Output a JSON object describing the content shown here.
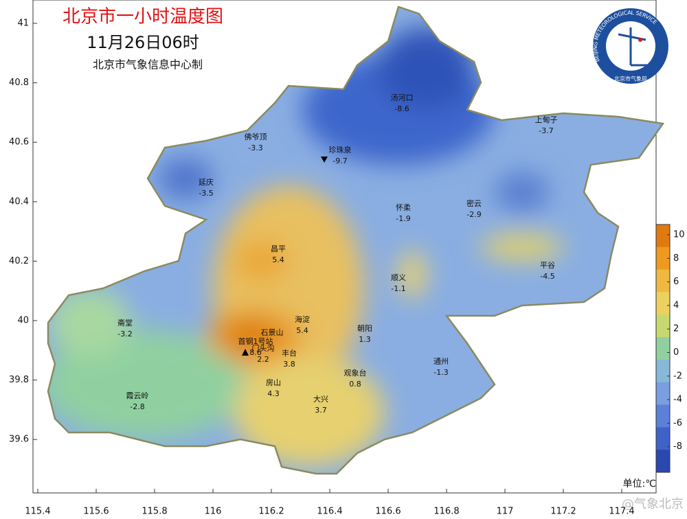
{
  "header": {
    "title": "北京市一小时温度图",
    "time": "11月26日06时",
    "producer": "北京市气象信息中心制"
  },
  "axes": {
    "lat_ticks": [
      41,
      40.8,
      40.6,
      40.4,
      40.2,
      40,
      39.8,
      39.6
    ],
    "lon_ticks": [
      115.4,
      115.6,
      115.8,
      116,
      116.2,
      116.4,
      116.6,
      116.8,
      117,
      117.2,
      117.4
    ]
  },
  "stations": [
    {
      "name": "汤河口",
      "value": -8.6
    },
    {
      "name": "上甸子",
      "value": -3.7
    },
    {
      "name": "佛爷顶",
      "value": -3.3
    },
    {
      "name": "珍珠泉",
      "value": -9.7
    },
    {
      "name": "延庆",
      "value": -3.5
    },
    {
      "name": "怀柔",
      "value": -1.9
    },
    {
      "name": "密云",
      "value": -2.9
    },
    {
      "name": "昌平",
      "value": 5.4
    },
    {
      "name": "平谷",
      "value": -4.5
    },
    {
      "name": "顺义",
      "value": -1.1
    },
    {
      "name": "海淀",
      "value": 5.4
    },
    {
      "name": "朝阳",
      "value": 1.3
    },
    {
      "name": "石景山"
    },
    {
      "name": "首钢1号站",
      "value": 8.6
    },
    {
      "name": "门头沟",
      "value": 2.2
    },
    {
      "name": "丰台",
      "value": 3.8
    },
    {
      "name": "斋堂",
      "value": -3.2
    },
    {
      "name": "通州",
      "value": -1.3
    },
    {
      "name": "观象台",
      "value": 0.8
    },
    {
      "name": "房山",
      "value": 4.3
    },
    {
      "name": "霞云岭",
      "value": -2.8
    },
    {
      "name": "大兴",
      "value": 3.7
    }
  ],
  "colorbar": {
    "ticks": [
      10,
      8,
      6,
      4,
      2,
      0,
      -2,
      -4,
      -6,
      -8
    ],
    "colors": [
      "#e07a10",
      "#ee9a20",
      "#f0b840",
      "#ecd060",
      "#c8d870",
      "#90d0a0",
      "#88b8d8",
      "#7a9ee0",
      "#5a80d8",
      "#3e62c8",
      "#2a48b0"
    ],
    "unit": "单位:℃"
  },
  "logo": {
    "text_en": "BEIJING METEOROLOGICAL SERVICE",
    "text_cn": "北京市气象局"
  },
  "watermark": "@气象北京"
}
